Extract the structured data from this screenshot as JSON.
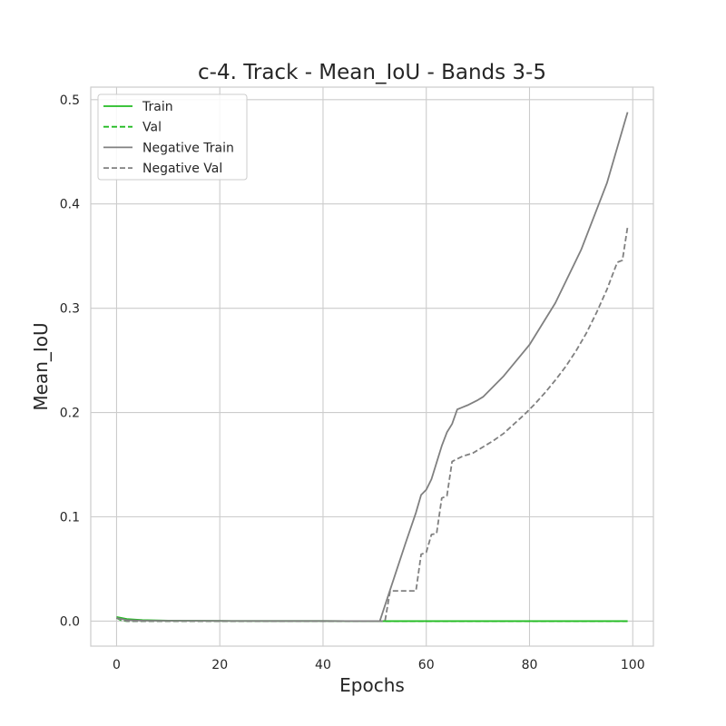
{
  "chart_data": {
    "type": "line",
    "title": "c-4. Track - Mean_IoU - Bands 3-5",
    "xlabel": "Epochs",
    "ylabel": "Mean_IoU",
    "xlim": [
      -5,
      104
    ],
    "ylim": [
      -0.024,
      0.512
    ],
    "xticks": [
      0,
      20,
      40,
      60,
      80,
      100
    ],
    "yticks": [
      0.0,
      0.1,
      0.2,
      0.3,
      0.4,
      0.5
    ],
    "ytick_labels": [
      "0.0",
      "0.1",
      "0.2",
      "0.3",
      "0.4",
      "0.5"
    ],
    "grid": true,
    "legend_position": "upper-left",
    "series": [
      {
        "name": "Train",
        "color": "#22bb22",
        "style": "solid",
        "x": [
          0,
          2,
          5,
          10,
          20,
          30,
          40,
          50,
          60,
          70,
          80,
          90,
          99
        ],
        "y": [
          0.004,
          0.002,
          0.001,
          0.0005,
          0.0002,
          0.0001,
          0.0001,
          0.0,
          0.0,
          0.0,
          0.0,
          0.0,
          0.0
        ]
      },
      {
        "name": "Val",
        "color": "#22bb22",
        "style": "dashed",
        "x": [
          0,
          1,
          2,
          5,
          10,
          20,
          30,
          40,
          50,
          60,
          70,
          80,
          90,
          99
        ],
        "y": [
          0.003,
          0.0005,
          0.0,
          0.0,
          0.0,
          0.0,
          0.0,
          0.0,
          0.0,
          0.0,
          0.0,
          0.0,
          0.0,
          0.0
        ]
      },
      {
        "name": "Negative Train",
        "color": "#808080",
        "style": "solid",
        "x": [
          0,
          2,
          5,
          10,
          20,
          30,
          40,
          50,
          51,
          52,
          54,
          56,
          58,
          59,
          60,
          61,
          62,
          63,
          64,
          65,
          66,
          67,
          68,
          70,
          71,
          75,
          80,
          85,
          90,
          95,
          99
        ],
        "y": [
          0.003,
          0.001,
          0.0005,
          0.0003,
          0.0002,
          0.0001,
          0.0001,
          0.0,
          0.0,
          0.015,
          0.045,
          0.075,
          0.104,
          0.121,
          0.126,
          0.136,
          0.152,
          0.168,
          0.181,
          0.189,
          0.203,
          0.205,
          0.207,
          0.212,
          0.215,
          0.235,
          0.265,
          0.305,
          0.356,
          0.42,
          0.488
        ]
      },
      {
        "name": "Negative Val",
        "color": "#808080",
        "style": "dashed",
        "x": [
          0,
          2,
          5,
          10,
          20,
          30,
          40,
          50,
          51,
          52,
          53,
          54,
          56,
          58,
          59,
          60,
          61,
          62,
          63,
          64,
          65,
          67,
          69,
          71,
          73,
          75,
          77,
          79,
          81,
          83,
          85,
          87,
          89,
          91,
          93,
          95,
          97,
          98,
          99
        ],
        "y": [
          0.003,
          0.0,
          0.0,
          0.0,
          0.0,
          0.0,
          0.0,
          0.0,
          0.0,
          0.0,
          0.029,
          0.029,
          0.029,
          0.029,
          0.064,
          0.066,
          0.083,
          0.084,
          0.118,
          0.12,
          0.153,
          0.158,
          0.161,
          0.167,
          0.173,
          0.18,
          0.189,
          0.198,
          0.208,
          0.219,
          0.231,
          0.244,
          0.259,
          0.276,
          0.296,
          0.318,
          0.344,
          0.346,
          0.378
        ]
      }
    ]
  }
}
